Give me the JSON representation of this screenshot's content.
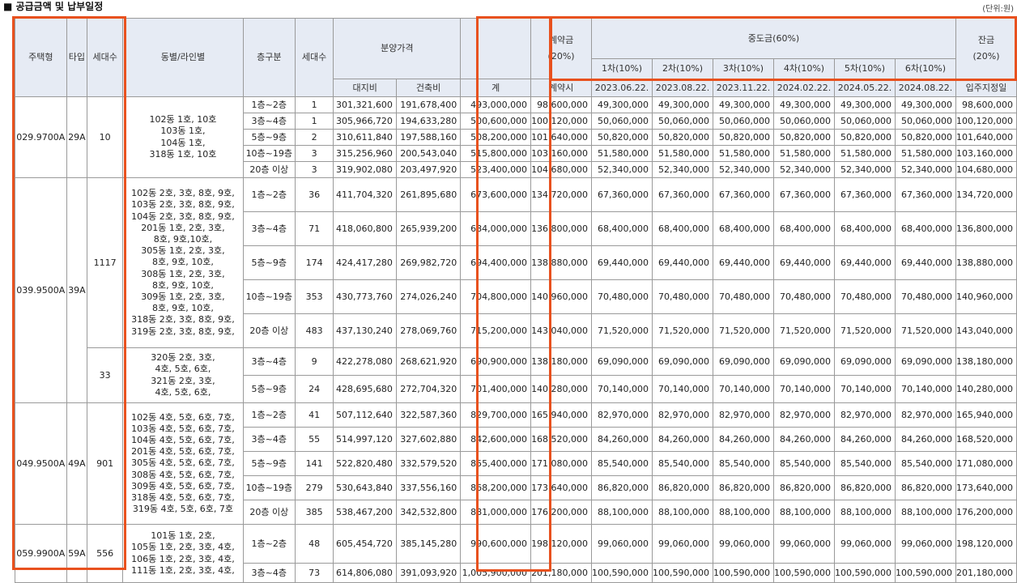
{
  "title": "■ 공급금액 및 납부일정",
  "unit": "(단위:원)",
  "header": {
    "house_type": "주택형",
    "type": "타입",
    "households": "세대수",
    "dong_line": "동별/라인별",
    "floor_group": "층구분",
    "floor_households": "세대수",
    "sale_price": "분양가격",
    "land_cost": "대지비",
    "building_cost": "건축비",
    "total": "계",
    "deposit_label": "계약금",
    "deposit_pct": "(20%)",
    "deposit_when": "계약시",
    "middle_label": "중도금(60%)",
    "middle_rounds": [
      "1차(10%)",
      "2차(10%)",
      "3차(10%)",
      "4차(10%)",
      "5차(10%)",
      "6차(10%)"
    ],
    "middle_dates": [
      "2023.06.22.",
      "2023.08.22.",
      "2023.11.22.",
      "2024.02.22.",
      "2024.05.22.",
      "2024.08.22."
    ],
    "balance_label": "잔금",
    "balance_pct": "(20%)",
    "balance_when": "입주지정일"
  },
  "types": [
    {
      "house_type": "029.9700A",
      "type": "29A"
    },
    {
      "house_type": "039.9500A",
      "type": "39A"
    },
    {
      "house_type": "049.9500A",
      "type": "49A"
    },
    {
      "house_type": "059.9900A",
      "type": "59A"
    }
  ],
  "subgroups": [
    {
      "households": "10",
      "dong": "102동 1호, 10호\n103동 1호,\n104동 1호,\n318동 1호, 10호"
    },
    {
      "households": "1117",
      "dong": "102동 2호, 3호, 8호, 9호,\n103동 2호, 3호, 8호, 9호,\n104동 2호, 3호, 8호, 9호,\n201동 1호, 2호, 3호,\n8호, 9호,10호,\n305동 1호, 2호, 3호,\n8호, 9호, 10호,\n308동 1호, 2호, 3호,\n8호, 9호, 10호,\n309동 1호, 2호, 3호,\n8호, 9호, 10호,\n318동 2호, 3호, 8호, 9호,\n319동 2호, 3호, 8호, 9호,"
    },
    {
      "households": "33",
      "dong": "320동 2호, 3호,\n4호, 5호, 6호,\n321동 2호, 3호,\n4호, 5호, 6호,"
    },
    {
      "households": "901",
      "dong": "102동 4호, 5호, 6호, 7호,\n103동 4호, 5호, 6호, 7호,\n104동 4호, 5호, 6호, 7호,\n201동 4호, 5호, 6호, 7호,\n305동 4호, 5호, 6호, 7호,\n308동 4호, 5호, 6호, 7호,\n309동 4호, 5호, 6호, 7호,\n318동 4호, 5호, 6호, 7호,\n319동 4호, 5호, 6호, 7호"
    },
    {
      "households": "556",
      "dong": "101동 1호, 2호,\n105동 1호, 2호, 3호, 4호,\n106동 1호, 2호, 3호, 4호,\n111동 1호, 2호, 3호, 4호,"
    }
  ],
  "rows": [
    {
      "floor": "1층~2층",
      "count": "1",
      "land": "301,321,600",
      "building": "191,678,400",
      "total": "493,000,000",
      "deposit": "98,600,000",
      "middle": "49,300,000",
      "balance": "98,600,000"
    },
    {
      "floor": "3층~4층",
      "count": "1",
      "land": "305,966,720",
      "building": "194,633,280",
      "total": "500,600,000",
      "deposit": "100,120,000",
      "middle": "50,060,000",
      "balance": "100,120,000"
    },
    {
      "floor": "5층~9층",
      "count": "2",
      "land": "310,611,840",
      "building": "197,588,160",
      "total": "508,200,000",
      "deposit": "101,640,000",
      "middle": "50,820,000",
      "balance": "101,640,000"
    },
    {
      "floor": "10층~19층",
      "count": "3",
      "land": "315,256,960",
      "building": "200,543,040",
      "total": "515,800,000",
      "deposit": "103,160,000",
      "middle": "51,580,000",
      "balance": "103,160,000"
    },
    {
      "floor": "20층 이상",
      "count": "3",
      "land": "319,902,080",
      "building": "203,497,920",
      "total": "523,400,000",
      "deposit": "104,680,000",
      "middle": "52,340,000",
      "balance": "104,680,000"
    },
    {
      "floor": "1층~2층",
      "count": "36",
      "land": "411,704,320",
      "building": "261,895,680",
      "total": "673,600,000",
      "deposit": "134,720,000",
      "middle": "67,360,000",
      "balance": "134,720,000"
    },
    {
      "floor": "3층~4층",
      "count": "71",
      "land": "418,060,800",
      "building": "265,939,200",
      "total": "684,000,000",
      "deposit": "136,800,000",
      "middle": "68,400,000",
      "balance": "136,800,000"
    },
    {
      "floor": "5층~9층",
      "count": "174",
      "land": "424,417,280",
      "building": "269,982,720",
      "total": "694,400,000",
      "deposit": "138,880,000",
      "middle": "69,440,000",
      "balance": "138,880,000"
    },
    {
      "floor": "10층~19층",
      "count": "353",
      "land": "430,773,760",
      "building": "274,026,240",
      "total": "704,800,000",
      "deposit": "140,960,000",
      "middle": "70,480,000",
      "balance": "140,960,000"
    },
    {
      "floor": "20층 이상",
      "count": "483",
      "land": "437,130,240",
      "building": "278,069,760",
      "total": "715,200,000",
      "deposit": "143,040,000",
      "middle": "71,520,000",
      "balance": "143,040,000"
    },
    {
      "floor": "3층~4층",
      "count": "9",
      "land": "422,278,080",
      "building": "268,621,920",
      "total": "690,900,000",
      "deposit": "138,180,000",
      "middle": "69,090,000",
      "balance": "138,180,000"
    },
    {
      "floor": "5층~9층",
      "count": "24",
      "land": "428,695,680",
      "building": "272,704,320",
      "total": "701,400,000",
      "deposit": "140,280,000",
      "middle": "70,140,000",
      "balance": "140,280,000"
    },
    {
      "floor": "1층~2층",
      "count": "41",
      "land": "507,112,640",
      "building": "322,587,360",
      "total": "829,700,000",
      "deposit": "165,940,000",
      "middle": "82,970,000",
      "balance": "165,940,000"
    },
    {
      "floor": "3층~4층",
      "count": "55",
      "land": "514,997,120",
      "building": "327,602,880",
      "total": "842,600,000",
      "deposit": "168,520,000",
      "middle": "84,260,000",
      "balance": "168,520,000"
    },
    {
      "floor": "5층~9층",
      "count": "141",
      "land": "522,820,480",
      "building": "332,579,520",
      "total": "855,400,000",
      "deposit": "171,080,000",
      "middle": "85,540,000",
      "balance": "171,080,000"
    },
    {
      "floor": "10층~19층",
      "count": "279",
      "land": "530,643,840",
      "building": "337,556,160",
      "total": "868,200,000",
      "deposit": "173,640,000",
      "middle": "86,820,000",
      "balance": "173,640,000"
    },
    {
      "floor": "20층 이상",
      "count": "385",
      "land": "538,467,200",
      "building": "342,532,800",
      "total": "881,000,000",
      "deposit": "176,200,000",
      "middle": "88,100,000",
      "balance": "176,200,000"
    },
    {
      "floor": "1층~2층",
      "count": "48",
      "land": "605,454,720",
      "building": "385,145,280",
      "total": "990,600,000",
      "deposit": "198,120,000",
      "middle": "99,060,000",
      "balance": "198,120,000"
    },
    {
      "floor": "3층~4층",
      "count": "73",
      "land": "614,806,080",
      "building": "391,093,920",
      "total": "1,005,900,000",
      "deposit": "201,180,000",
      "middle": "100,590,000",
      "balance": "201,180,000"
    }
  ],
  "highlight_color": "#e8511e"
}
